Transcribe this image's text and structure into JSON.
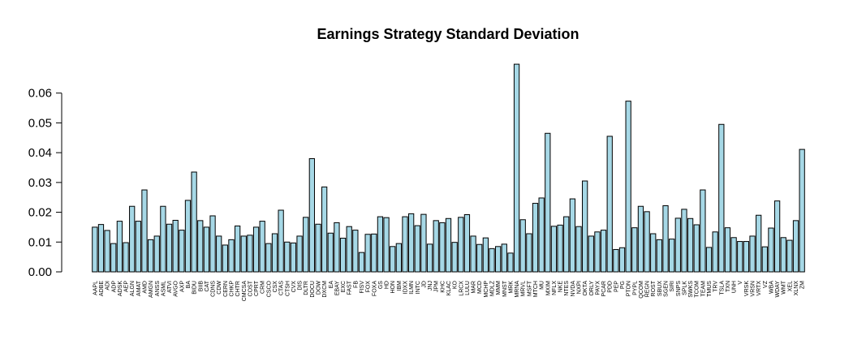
{
  "chart_data": {
    "type": "bar",
    "title": "Earnings Strategy Standard Deviation",
    "xlabel": "",
    "ylabel": "",
    "ylim": [
      0,
      0.07
    ],
    "yticks": [
      0.0,
      0.01,
      0.02,
      0.03,
      0.04,
      0.05,
      0.06
    ],
    "ytick_labels": [
      "0.00",
      "0.01",
      "0.02",
      "0.03",
      "0.04",
      "0.05",
      "0.06"
    ],
    "bar_color": "#a6d8e6",
    "grid": false,
    "categories": [
      "AAPL",
      "ADBE",
      "ADI",
      "ADP",
      "ADSK",
      "AEP",
      "ALGN",
      "AMAT",
      "AMD",
      "AMGN",
      "ANSS",
      "ASML",
      "ATVI",
      "AVGO",
      "AXP",
      "BA",
      "BIDU",
      "BIIB",
      "CAT",
      "CDNS",
      "CDW",
      "CERN",
      "CHKP",
      "CHTR",
      "CMCSA",
      "COST",
      "CPRT",
      "CRM",
      "CSCO",
      "CSX",
      "CTAS",
      "CTSH",
      "CVX",
      "DIS",
      "DLTR",
      "DOCU",
      "DOW",
      "DXCM",
      "EA",
      "EBAY",
      "EXC",
      "FAST",
      "FB",
      "FISV",
      "FOX",
      "FOXA",
      "GS",
      "HD",
      "HON",
      "IBM",
      "IDXX",
      "ILMN",
      "INTC",
      "JD",
      "JNJ",
      "JPM",
      "KHC",
      "KLAC",
      "KO",
      "LRCX",
      "LULU",
      "MAR",
      "MCD",
      "MCHP",
      "MDLZ",
      "MMM",
      "MNST",
      "MRK",
      "MRNA",
      "MRVL",
      "MSFT",
      "MTCH",
      "MU",
      "MXIM",
      "NFLX",
      "NKE",
      "NTES",
      "NVDA",
      "NXPI",
      "OKTA",
      "ORLY",
      "PAYX",
      "PCAR",
      "PDD",
      "PEP",
      "PG",
      "PTON",
      "PYPL",
      "QCOM",
      "REGN",
      "ROST",
      "SBUX",
      "SGEN",
      "SIRI",
      "SNPS",
      "SPLK",
      "SWKS",
      "TCOM",
      "TEAM",
      "TMUS",
      "TRV",
      "TSLA",
      "TXN",
      "UNH",
      "V",
      "VRSK",
      "VRSN",
      "VRTX",
      "VZ",
      "WBA",
      "WDAY",
      "WMT",
      "XEL",
      "XLNX",
      "ZM"
    ],
    "values": [
      0.015,
      0.0159,
      0.0139,
      0.0095,
      0.017,
      0.0098,
      0.022,
      0.017,
      0.0275,
      0.0108,
      0.012,
      0.022,
      0.016,
      0.0173,
      0.014,
      0.024,
      0.0335,
      0.0172,
      0.015,
      0.0188,
      0.012,
      0.009,
      0.0108,
      0.0154,
      0.012,
      0.0123,
      0.015,
      0.017,
      0.0095,
      0.0128,
      0.0207,
      0.01,
      0.0097,
      0.012,
      0.0183,
      0.038,
      0.016,
      0.0285,
      0.013,
      0.0165,
      0.0113,
      0.0152,
      0.014,
      0.0065,
      0.0126,
      0.0127,
      0.0185,
      0.0182,
      0.0085,
      0.0095,
      0.0185,
      0.0195,
      0.0155,
      0.0193,
      0.0093,
      0.0172,
      0.0165,
      0.0179,
      0.0099,
      0.0183,
      0.0192,
      0.012,
      0.0092,
      0.0114,
      0.0078,
      0.0085,
      0.0093,
      0.0063,
      0.0697,
      0.0175,
      0.0128,
      0.023,
      0.0248,
      0.0465,
      0.0153,
      0.0157,
      0.0185,
      0.0245,
      0.0152,
      0.0305,
      0.012,
      0.0134,
      0.014,
      0.0455,
      0.0075,
      0.0081,
      0.0573,
      0.0148,
      0.022,
      0.0202,
      0.0128,
      0.0108,
      0.0222,
      0.011,
      0.018,
      0.021,
      0.0179,
      0.0158,
      0.0275,
      0.0082,
      0.0134,
      0.0495,
      0.0148,
      0.0115,
      0.0102,
      0.0102,
      0.012,
      0.019,
      0.0084,
      0.0147,
      0.0238,
      0.0115,
      0.0106,
      0.0172,
      0.0411
    ]
  }
}
